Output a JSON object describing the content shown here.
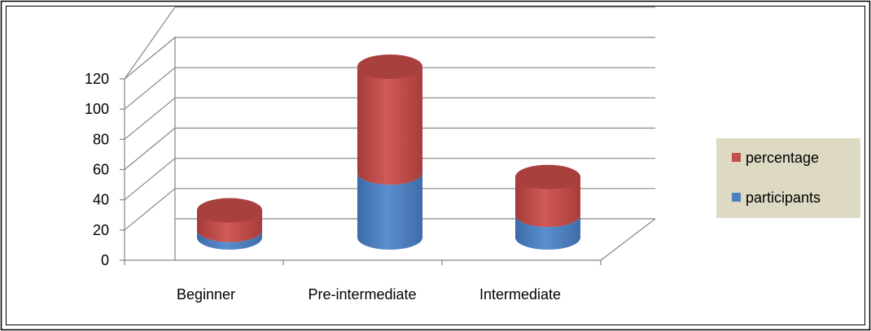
{
  "chart_data": {
    "type": "bar",
    "subtype": "stacked-3d-cylinder",
    "title": "",
    "xlabel": "",
    "ylabel": "",
    "categories": [
      "Beginner",
      "Pre-intermediate",
      "Intermediate"
    ],
    "series": [
      {
        "name": "participants",
        "values": [
          5,
          43,
          15
        ],
        "color": "#4f81bd"
      },
      {
        "name": "percentage",
        "values": [
          13,
          70,
          25
        ],
        "color": "#c0504d"
      }
    ],
    "y_ticks": [
      "0",
      "20",
      "40",
      "60",
      "80",
      "100",
      "120"
    ],
    "ylim": [
      0,
      120
    ],
    "grid": true,
    "legend_position": "right",
    "legend_background": "#ddd9c3"
  }
}
